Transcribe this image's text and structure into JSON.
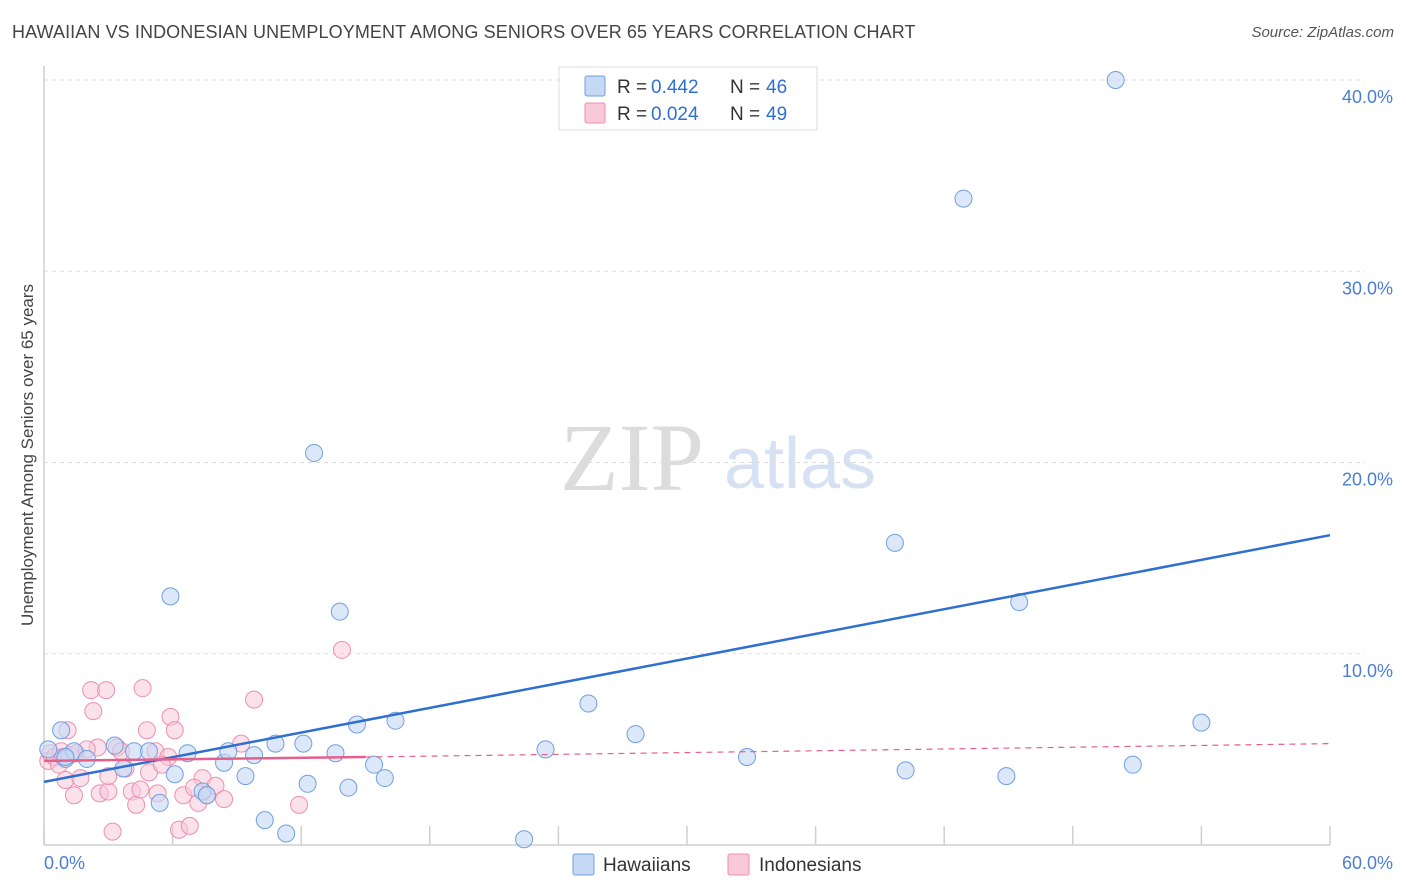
{
  "title": "HAWAIIAN VS INDONESIAN UNEMPLOYMENT AMONG SENIORS OVER 65 YEARS CORRELATION CHART",
  "source": "Source: ZipAtlas.com",
  "watermark": {
    "zip": "ZIP",
    "atlas": "atlas"
  },
  "chart_data": {
    "type": "scatter",
    "title": "HAWAIIAN VS INDONESIAN UNEMPLOYMENT AMONG SENIORS OVER 65 YEARS CORRELATION CHART",
    "xlabel": "",
    "ylabel": "Unemployment Among Seniors over 65 years",
    "xlim": [
      0,
      60
    ],
    "ylim": [
      0,
      40
    ],
    "x_tick_labels": [
      "0.0%",
      "60.0%"
    ],
    "y_ticks": [
      10,
      20,
      30,
      40
    ],
    "y_tick_labels": [
      "10.0%",
      "20.0%",
      "30.0%",
      "40.0%"
    ],
    "grid": true,
    "legend": {
      "placement": "top-center",
      "entries": [
        {
          "r_label": "R =",
          "r_value": "0.442",
          "n_label": "N =",
          "n_value": "46"
        },
        {
          "r_label": "R =",
          "r_value": "0.024",
          "n_label": "N =",
          "n_value": "49"
        }
      ]
    },
    "bottom_legend": [
      "Hawaiians",
      "Indonesians"
    ],
    "colors": {
      "hawaiians": "#6f9fe3",
      "indonesians": "#ee8fb0",
      "hawaiians_line": "#2f6fd0",
      "indonesians_line": "#e4608f"
    },
    "series": [
      {
        "name": "Hawaiians",
        "points": [
          [
            0.2,
            5.0
          ],
          [
            0.8,
            6.0
          ],
          [
            1.0,
            4.5
          ],
          [
            1.4,
            4.9
          ],
          [
            2.0,
            4.5
          ],
          [
            3.3,
            5.2
          ],
          [
            3.7,
            4.0
          ],
          [
            4.2,
            4.9
          ],
          [
            4.9,
            4.9
          ],
          [
            5.4,
            2.2
          ],
          [
            5.9,
            13.0
          ],
          [
            6.1,
            3.7
          ],
          [
            6.7,
            4.8
          ],
          [
            7.4,
            2.8
          ],
          [
            7.6,
            2.6
          ],
          [
            8.4,
            4.3
          ],
          [
            8.6,
            4.9
          ],
          [
            9.4,
            3.6
          ],
          [
            9.8,
            4.7
          ],
          [
            10.3,
            1.3
          ],
          [
            10.8,
            5.3
          ],
          [
            11.3,
            0.6
          ],
          [
            12.1,
            5.3
          ],
          [
            12.3,
            3.2
          ],
          [
            12.6,
            20.5
          ],
          [
            13.6,
            4.8
          ],
          [
            13.8,
            12.2
          ],
          [
            14.2,
            3.0
          ],
          [
            14.6,
            6.3
          ],
          [
            15.4,
            4.2
          ],
          [
            15.9,
            3.5
          ],
          [
            16.4,
            6.5
          ],
          [
            22.4,
            0.3
          ],
          [
            23.4,
            5.0
          ],
          [
            25.4,
            7.4
          ],
          [
            27.6,
            5.8
          ],
          [
            32.8,
            4.6
          ],
          [
            39.7,
            15.8
          ],
          [
            40.2,
            3.9
          ],
          [
            42.9,
            33.8
          ],
          [
            44.9,
            3.6
          ],
          [
            45.5,
            12.7
          ],
          [
            50.0,
            40.0
          ],
          [
            50.8,
            4.2
          ],
          [
            54.0,
            6.4
          ],
          [
            1.0,
            4.6
          ]
        ],
        "trend": {
          "x": [
            0,
            60
          ],
          "y": [
            3.3,
            16.2
          ]
        }
      },
      {
        "name": "Indonesians",
        "points": [
          [
            0.2,
            4.4
          ],
          [
            0.3,
            4.8
          ],
          [
            0.5,
            4.6
          ],
          [
            0.7,
            4.2
          ],
          [
            0.8,
            4.9
          ],
          [
            0.9,
            4.6
          ],
          [
            1.0,
            3.4
          ],
          [
            1.1,
            6.0
          ],
          [
            1.2,
            4.7
          ],
          [
            1.5,
            4.8
          ],
          [
            1.7,
            3.5
          ],
          [
            2.2,
            8.1
          ],
          [
            2.3,
            7.0
          ],
          [
            2.5,
            5.1
          ],
          [
            2.6,
            2.7
          ],
          [
            2.9,
            8.1
          ],
          [
            3.0,
            2.8
          ],
          [
            3.2,
            0.7
          ],
          [
            3.4,
            5.1
          ],
          [
            3.6,
            4.9
          ],
          [
            3.8,
            4.0
          ],
          [
            4.1,
            2.8
          ],
          [
            4.3,
            2.1
          ],
          [
            4.5,
            2.9
          ],
          [
            4.6,
            8.2
          ],
          [
            4.8,
            6.0
          ],
          [
            4.9,
            3.8
          ],
          [
            5.2,
            4.9
          ],
          [
            5.3,
            2.7
          ],
          [
            5.8,
            4.6
          ],
          [
            5.9,
            6.7
          ],
          [
            6.1,
            6.0
          ],
          [
            6.3,
            0.8
          ],
          [
            6.5,
            2.6
          ],
          [
            6.8,
            1.0
          ],
          [
            7.2,
            2.2
          ],
          [
            7.4,
            3.5
          ],
          [
            7.6,
            2.6
          ],
          [
            8.0,
            3.1
          ],
          [
            8.4,
            2.4
          ],
          [
            9.2,
            5.3
          ],
          [
            9.8,
            7.6
          ],
          [
            11.9,
            2.1
          ],
          [
            13.9,
            10.2
          ],
          [
            2.0,
            5.0
          ],
          [
            3.0,
            3.6
          ],
          [
            5.5,
            4.2
          ],
          [
            7.0,
            3.0
          ],
          [
            1.4,
            2.6
          ]
        ],
        "trend_solid": {
          "x": [
            0,
            15
          ],
          "y": [
            4.4,
            4.6
          ]
        },
        "trend_dashed": {
          "x": [
            15,
            60
          ],
          "y": [
            4.6,
            5.3
          ]
        }
      }
    ]
  }
}
